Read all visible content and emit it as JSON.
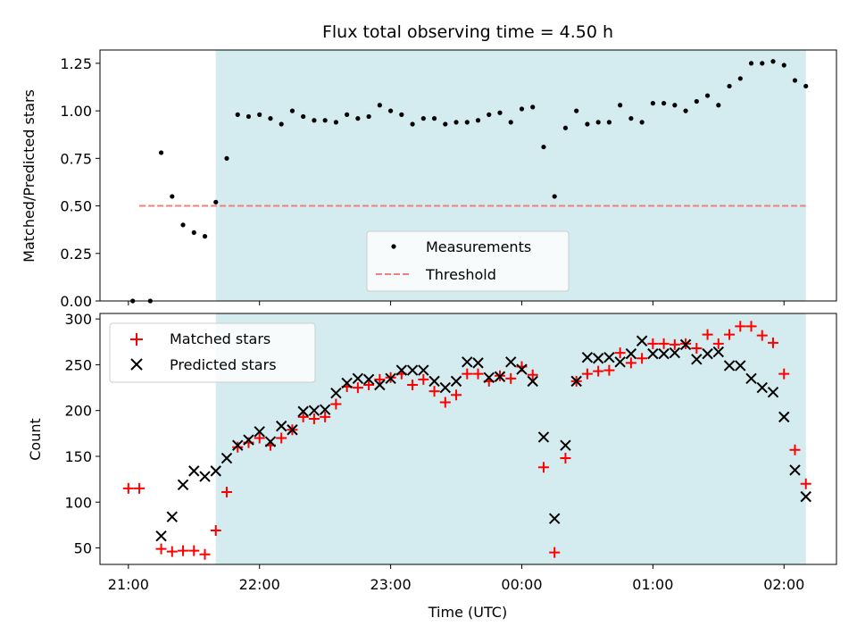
{
  "colors": {
    "observing_band": "#d4ebf0",
    "measurement": "#000000",
    "threshold": "#f08080",
    "matched": "#ff0000",
    "predicted": "#000000"
  },
  "chart_data": [
    {
      "type": "scatter",
      "title": "Flux total observing time = 4.50 h",
      "xlabel": "",
      "ylabel": "Matched/Predicted stars",
      "ylim": [
        0,
        1.32
      ],
      "yticks": [
        0,
        0.25,
        0.5,
        0.75,
        1.0,
        1.25
      ],
      "ytick_labels": [
        "0.00",
        "0.25",
        "0.50",
        "0.75",
        "1.00",
        "1.25"
      ],
      "shaded_band": [
        "21:40",
        "02:10"
      ],
      "grid": false,
      "legend": "lower-center",
      "legend_entries": [
        "Measurements",
        "Threshold"
      ],
      "threshold": {
        "value": 0.5,
        "x_range": [
          "21:05",
          "02:10"
        ]
      },
      "series": [
        {
          "name": "Measurements",
          "marker": "dot",
          "points": [
            [
              "21:02",
              0.0
            ],
            [
              "21:10",
              0.0
            ],
            [
              "21:15",
              0.78
            ],
            [
              "21:20",
              0.55
            ],
            [
              "21:25",
              0.4
            ],
            [
              "21:30",
              0.36
            ],
            [
              "21:35",
              0.34
            ],
            [
              "21:40",
              0.52
            ],
            [
              "21:45",
              0.75
            ],
            [
              "21:50",
              0.98
            ],
            [
              "21:55",
              0.97
            ],
            [
              "22:00",
              0.98
            ],
            [
              "22:05",
              0.96
            ],
            [
              "22:10",
              0.93
            ],
            [
              "22:15",
              1.0
            ],
            [
              "22:20",
              0.97
            ],
            [
              "22:25",
              0.95
            ],
            [
              "22:30",
              0.95
            ],
            [
              "22:35",
              0.94
            ],
            [
              "22:40",
              0.98
            ],
            [
              "22:45",
              0.96
            ],
            [
              "22:50",
              0.97
            ],
            [
              "22:55",
              1.03
            ],
            [
              "23:00",
              1.0
            ],
            [
              "23:05",
              0.98
            ],
            [
              "23:10",
              0.93
            ],
            [
              "23:15",
              0.96
            ],
            [
              "23:20",
              0.96
            ],
            [
              "23:25",
              0.93
            ],
            [
              "23:30",
              0.94
            ],
            [
              "23:35",
              0.94
            ],
            [
              "23:40",
              0.95
            ],
            [
              "23:45",
              0.98
            ],
            [
              "23:50",
              0.99
            ],
            [
              "23:55",
              0.94
            ],
            [
              "00:00",
              1.01
            ],
            [
              "00:05",
              1.02
            ],
            [
              "00:10",
              0.81
            ],
            [
              "00:15",
              0.55
            ],
            [
              "00:20",
              0.91
            ],
            [
              "00:25",
              1.0
            ],
            [
              "00:30",
              0.93
            ],
            [
              "00:35",
              0.94
            ],
            [
              "00:40",
              0.94
            ],
            [
              "00:45",
              1.03
            ],
            [
              "00:50",
              0.96
            ],
            [
              "00:55",
              0.94
            ],
            [
              "01:00",
              1.04
            ],
            [
              "01:05",
              1.04
            ],
            [
              "01:10",
              1.03
            ],
            [
              "01:15",
              1.0
            ],
            [
              "01:20",
              1.05
            ],
            [
              "01:25",
              1.08
            ],
            [
              "01:30",
              1.03
            ],
            [
              "01:35",
              1.13
            ],
            [
              "01:40",
              1.17
            ],
            [
              "01:45",
              1.25
            ],
            [
              "01:50",
              1.25
            ],
            [
              "01:55",
              1.26
            ],
            [
              "02:00",
              1.24
            ],
            [
              "02:05",
              1.16
            ],
            [
              "02:10",
              1.13
            ]
          ]
        }
      ]
    },
    {
      "type": "scatter",
      "xlabel": "Time (UTC)",
      "ylabel": "Count",
      "ylim": [
        32,
        306
      ],
      "yticks": [
        50,
        100,
        150,
        200,
        250,
        300
      ],
      "ytick_labels": [
        "50",
        "100",
        "150",
        "200",
        "250",
        "300"
      ],
      "xticks": [
        "21:00",
        "22:00",
        "23:00",
        "00:00",
        "01:00",
        "02:00"
      ],
      "xtick_labels": [
        "21:00",
        "22:00",
        "23:00",
        "00:00",
        "01:00",
        "02:00"
      ],
      "shaded_band": [
        "21:40",
        "02:10"
      ],
      "grid": false,
      "legend": "top-left",
      "legend_entries": [
        "Matched stars",
        "Predicted stars"
      ],
      "series": [
        {
          "name": "Matched stars",
          "marker": "plus",
          "points": [
            [
              "21:00",
              115
            ],
            [
              "21:05",
              115
            ],
            [
              "21:15",
              49
            ],
            [
              "21:20",
              46
            ],
            [
              "21:25",
              47
            ],
            [
              "21:30",
              47
            ],
            [
              "21:35",
              43
            ],
            [
              "21:40",
              69
            ],
            [
              "21:45",
              111
            ],
            [
              "21:50",
              160
            ],
            [
              "21:55",
              165
            ],
            [
              "22:00",
              170
            ],
            [
              "22:05",
              162
            ],
            [
              "22:10",
              170
            ],
            [
              "22:15",
              179
            ],
            [
              "22:20",
              193
            ],
            [
              "22:25",
              191
            ],
            [
              "22:30",
              193
            ],
            [
              "22:35",
              207
            ],
            [
              "22:40",
              226
            ],
            [
              "22:45",
              225
            ],
            [
              "22:50",
              228
            ],
            [
              "22:55",
              234
            ],
            [
              "23:00",
              236
            ],
            [
              "23:05",
              240
            ],
            [
              "23:10",
              228
            ],
            [
              "23:15",
              234
            ],
            [
              "23:20",
              221
            ],
            [
              "23:25",
              209
            ],
            [
              "23:30",
              217
            ],
            [
              "23:35",
              240
            ],
            [
              "23:40",
              240
            ],
            [
              "23:45",
              232
            ],
            [
              "23:50",
              238
            ],
            [
              "23:55",
              235
            ],
            [
              "00:00",
              248
            ],
            [
              "00:05",
              239
            ],
            [
              "00:10",
              138
            ],
            [
              "00:15",
              45
            ],
            [
              "00:20",
              148
            ],
            [
              "00:25",
              232
            ],
            [
              "00:30",
              240
            ],
            [
              "00:35",
              243
            ],
            [
              "00:40",
              244
            ],
            [
              "00:45",
              263
            ],
            [
              "00:50",
              252
            ],
            [
              "00:55",
              257
            ],
            [
              "01:00",
              273
            ],
            [
              "01:05",
              273
            ],
            [
              "01:10",
              272
            ],
            [
              "01:15",
              273
            ],
            [
              "01:20",
              268
            ],
            [
              "01:25",
              283
            ],
            [
              "01:30",
              273
            ],
            [
              "01:35",
              283
            ],
            [
              "01:40",
              292
            ],
            [
              "01:45",
              292
            ],
            [
              "01:50",
              282
            ],
            [
              "01:55",
              274
            ],
            [
              "02:00",
              240
            ],
            [
              "02:05",
              157
            ],
            [
              "02:10",
              120
            ]
          ]
        },
        {
          "name": "Predicted stars",
          "marker": "cross",
          "points": [
            [
              "21:15",
              63
            ],
            [
              "21:20",
              84
            ],
            [
              "21:25",
              119
            ],
            [
              "21:30",
              134
            ],
            [
              "21:35",
              128
            ],
            [
              "21:40",
              134
            ],
            [
              "21:45",
              148
            ],
            [
              "21:50",
              162
            ],
            [
              "21:55",
              168
            ],
            [
              "22:00",
              177
            ],
            [
              "22:05",
              166
            ],
            [
              "22:10",
              183
            ],
            [
              "22:15",
              179
            ],
            [
              "22:20",
              199
            ],
            [
              "22:25",
              200
            ],
            [
              "22:30",
              201
            ],
            [
              "22:35",
              219
            ],
            [
              "22:40",
              230
            ],
            [
              "22:45",
              235
            ],
            [
              "22:50",
              234
            ],
            [
              "22:55",
              228
            ],
            [
              "23:00",
              235
            ],
            [
              "23:05",
              244
            ],
            [
              "23:10",
              244
            ],
            [
              "23:15",
              244
            ],
            [
              "23:20",
              232
            ],
            [
              "23:25",
              225
            ],
            [
              "23:30",
              232
            ],
            [
              "23:35",
              253
            ],
            [
              "23:40",
              252
            ],
            [
              "23:45",
              236
            ],
            [
              "23:50",
              237
            ],
            [
              "23:55",
              253
            ],
            [
              "00:00",
              245
            ],
            [
              "00:05",
              232
            ],
            [
              "00:10",
              171
            ],
            [
              "00:15",
              82
            ],
            [
              "00:20",
              162
            ],
            [
              "00:25",
              232
            ],
            [
              "00:30",
              258
            ],
            [
              "00:35",
              257
            ],
            [
              "00:40",
              258
            ],
            [
              "00:45",
              253
            ],
            [
              "00:50",
              262
            ],
            [
              "00:55",
              276
            ],
            [
              "01:00",
              262
            ],
            [
              "01:05",
              262
            ],
            [
              "01:10",
              263
            ],
            [
              "01:15",
              272
            ],
            [
              "01:20",
              256
            ],
            [
              "01:25",
              262
            ],
            [
              "01:30",
              264
            ],
            [
              "01:35",
              249
            ],
            [
              "01:40",
              249
            ],
            [
              "01:45",
              235
            ],
            [
              "01:50",
              225
            ],
            [
              "01:55",
              220
            ],
            [
              "02:00",
              193
            ],
            [
              "02:05",
              135
            ],
            [
              "02:10",
              106
            ]
          ]
        }
      ]
    }
  ]
}
